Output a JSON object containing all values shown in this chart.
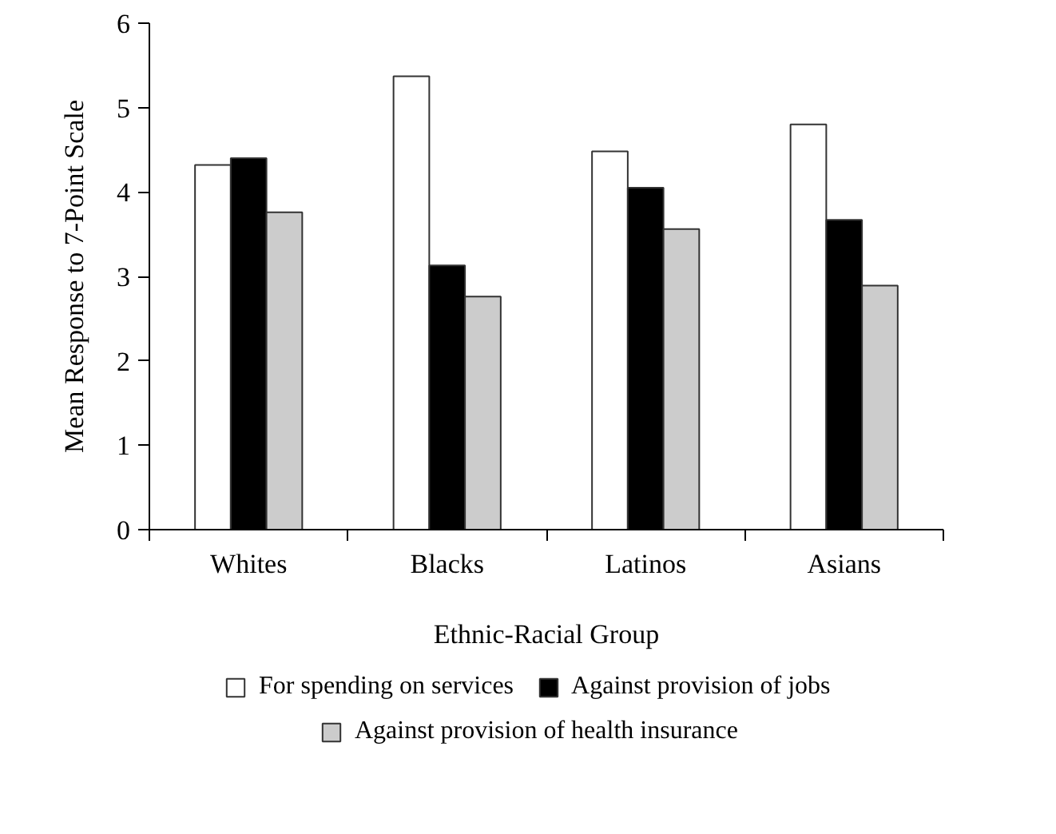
{
  "chart_data": {
    "type": "bar",
    "xlabel": "Ethnic-Racial Group",
    "ylabel": "Mean Response to 7-Point Scale",
    "categories": [
      "Whites",
      "Blacks",
      "Latinos",
      "Asians"
    ],
    "series": [
      {
        "name": "For spending on services",
        "color": "#ffffff",
        "values": [
          4.32,
          5.37,
          4.48,
          4.8
        ]
      },
      {
        "name": "Against provision of jobs",
        "color": "#000000",
        "values": [
          4.4,
          3.13,
          4.05,
          3.67
        ]
      },
      {
        "name": "Against provision of health insurance",
        "color": "#cccccc",
        "values": [
          3.76,
          2.76,
          3.56,
          2.89
        ]
      }
    ],
    "ylim": [
      0,
      6
    ],
    "yticks": [
      0,
      1,
      2,
      3,
      4,
      5,
      6
    ],
    "grid": false,
    "legend": "bottom"
  }
}
